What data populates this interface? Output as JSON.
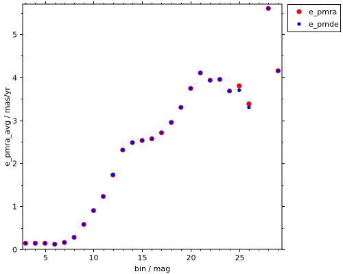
{
  "chart_data": {
    "type": "scatter",
    "xlabel": "bin / mag",
    "ylabel": "e_pmra_avg / mas/yr",
    "xlim": [
      2.7,
      29.4
    ],
    "ylim": [
      0,
      5.7
    ],
    "x_ticks": [
      5,
      10,
      15,
      20,
      25
    ],
    "y_ticks": [
      0,
      1,
      2,
      3,
      4,
      5
    ],
    "grid": false,
    "legend_position": "top-right-outside",
    "series": [
      {
        "name": "e_pmra",
        "color": "#ff0000",
        "marker": "filled-circle-large",
        "x": [
          3,
          4,
          5,
          6,
          7,
          8,
          9,
          10,
          11,
          12,
          13,
          14,
          15,
          16,
          17,
          18,
          19,
          20,
          21,
          22,
          23,
          24,
          25,
          26,
          28,
          29
        ],
        "y": [
          0.14,
          0.14,
          0.14,
          0.12,
          0.16,
          0.28,
          0.58,
          0.9,
          1.23,
          1.73,
          2.31,
          2.48,
          2.53,
          2.57,
          2.71,
          2.95,
          3.3,
          3.74,
          4.1,
          3.93,
          3.95,
          3.68,
          3.8,
          3.38,
          5.6,
          4.15
        ]
      },
      {
        "name": "e_pmde",
        "color": "#0000ff",
        "marker": "filled-circle-small",
        "x": [
          3,
          4,
          5,
          6,
          7,
          8,
          9,
          10,
          11,
          12,
          13,
          14,
          15,
          16,
          17,
          18,
          19,
          20,
          21,
          22,
          23,
          24,
          25,
          26,
          28,
          29
        ],
        "y": [
          0.14,
          0.14,
          0.14,
          0.12,
          0.16,
          0.28,
          0.58,
          0.9,
          1.23,
          1.73,
          2.31,
          2.48,
          2.53,
          2.57,
          2.71,
          2.95,
          3.3,
          3.74,
          4.1,
          3.93,
          3.95,
          3.68,
          3.7,
          3.3,
          5.6,
          4.15
        ]
      }
    ]
  }
}
